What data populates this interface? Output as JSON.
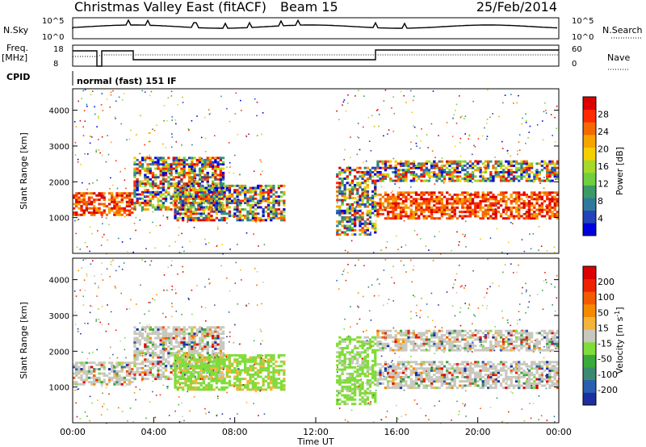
{
  "header": {
    "title": "Christmas Valley East (fitACF)",
    "beam": "Beam 15",
    "date": "25/Feb/2014"
  },
  "top_panels": {
    "nsky_label": "N.Sky",
    "nsearch_label": "N.Search",
    "nsky_ticks": [
      "10^5",
      "10^0"
    ],
    "freq_label_1": "Freq.",
    "freq_label_2": "[MHz]",
    "freq_ticks": [
      "18",
      "8"
    ],
    "nave_label": "Nave",
    "nave_ticks": [
      "60",
      "0"
    ],
    "cpid_label": "CPID",
    "cpid_value": "normal (fast) 151 IF"
  },
  "chart_data": [
    {
      "type": "heatmap",
      "panel": "power",
      "ylabel": "Slant Range [km]",
      "yticks": [
        1000,
        2000,
        3000,
        4000
      ],
      "ylim": [
        0,
        4600
      ],
      "xlim": [
        0,
        24
      ],
      "colorbar": {
        "label": "Power [dB]",
        "ticks": [
          "4",
          "8",
          "12",
          "16",
          "20",
          "24",
          "28"
        ],
        "colors": [
          "#0000dd",
          "#2244bb",
          "#2f7a9a",
          "#3c9a66",
          "#6fcf3f",
          "#a7d92a",
          "#f4d000",
          "#f7a300",
          "#f46a00",
          "#ff2a00",
          "#dd0000"
        ]
      },
      "echo_bands": [
        {
          "t_start": 0.0,
          "t_end": 3.0,
          "r_low": 1050,
          "r_high": 1700,
          "level": "high"
        },
        {
          "t_start": 3.0,
          "t_end": 7.5,
          "r_low": 1200,
          "r_high": 2700,
          "level": "mixed"
        },
        {
          "t_start": 5.0,
          "t_end": 10.5,
          "r_low": 900,
          "r_high": 1900,
          "level": "mixed"
        },
        {
          "t_start": 13.0,
          "t_end": 15.0,
          "r_low": 500,
          "r_high": 2400,
          "level": "mixed"
        },
        {
          "t_start": 15.0,
          "t_end": 24.0,
          "r_low": 950,
          "r_high": 1700,
          "level": "high"
        },
        {
          "t_start": 15.0,
          "t_end": 24.0,
          "r_low": 2000,
          "r_high": 2600,
          "level": "mixed"
        }
      ]
    },
    {
      "type": "heatmap",
      "panel": "velocity",
      "ylabel": "Slant Range [km]",
      "yticks": [
        1000,
        2000,
        3000,
        4000
      ],
      "ylim": [
        0,
        4600
      ],
      "xlim": [
        0,
        24
      ],
      "xticks": [
        "00:00",
        "04:00",
        "08:00",
        "12:00",
        "16:00",
        "20:00",
        "00:00"
      ],
      "xlabel": "Time UT",
      "colorbar": {
        "label": "Velocity [m s",
        "label_sup": "-1",
        "label_close": "]",
        "ticks": [
          "200",
          "100",
          "50",
          "15",
          "-15",
          "-50",
          "-100",
          "-200"
        ],
        "colors": [
          "#1c2fa0",
          "#2a5fb0",
          "#3b8a70",
          "#3aaa3a",
          "#80dc3a",
          "#c8c8be",
          "#f3b43a",
          "#f48a00",
          "#f45a00",
          "#ee2200",
          "#dd0000"
        ]
      }
    }
  ]
}
